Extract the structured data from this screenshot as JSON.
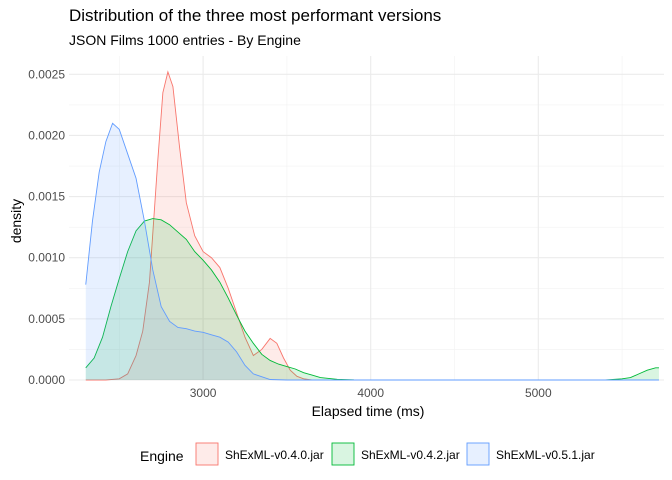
{
  "chart_data": {
    "type": "area",
    "title": "Distribution of the three most performant versions",
    "subtitle": "JSON Films 1000 entries - By Engine",
    "xlabel": "Elapsed time (ms)",
    "ylabel": "density",
    "xlim": [
      2200,
      5750
    ],
    "ylim": [
      0,
      0.00265
    ],
    "x_ticks": [
      3000,
      4000,
      5000
    ],
    "x_tick_labels": [
      "3000",
      "4000",
      "5000"
    ],
    "y_ticks": [
      0,
      0.0005,
      0.001,
      0.0015,
      0.002,
      0.0025
    ],
    "y_tick_labels": [
      "0.0000",
      "0.0005",
      "0.0010",
      "0.0015",
      "0.0020",
      "0.0025"
    ],
    "grid": true,
    "legend": {
      "title": "Engine",
      "position": "bottom"
    },
    "series": [
      {
        "name": "ShExML-v0.4.0.jar",
        "color": "#F8766D",
        "points": [
          [
            2300,
            0
          ],
          [
            2420,
            0
          ],
          [
            2500,
            1e-05
          ],
          [
            2550,
            5e-05
          ],
          [
            2600,
            0.0002
          ],
          [
            2640,
            0.0004
          ],
          [
            2680,
            0.0008
          ],
          [
            2700,
            0.0012
          ],
          [
            2730,
            0.0018
          ],
          [
            2760,
            0.00235
          ],
          [
            2790,
            0.00252
          ],
          [
            2820,
            0.0024
          ],
          [
            2860,
            0.0019
          ],
          [
            2900,
            0.00145
          ],
          [
            2950,
            0.00118
          ],
          [
            3000,
            0.00105
          ],
          [
            3050,
            0.001
          ],
          [
            3100,
            0.00092
          ],
          [
            3150,
            0.00075
          ],
          [
            3200,
            0.00055
          ],
          [
            3250,
            0.00035
          ],
          [
            3300,
            0.0002
          ],
          [
            3350,
            0.00025
          ],
          [
            3400,
            0.00034
          ],
          [
            3440,
            0.0003
          ],
          [
            3480,
            0.00018
          ],
          [
            3520,
            8e-05
          ],
          [
            3560,
            3e-05
          ],
          [
            3600,
            1e-05
          ],
          [
            3650,
            0
          ]
        ]
      },
      {
        "name": "ShExML-v0.4.2.jar",
        "color": "#00BA38",
        "points": [
          [
            2300,
            0.0001
          ],
          [
            2350,
            0.00018
          ],
          [
            2400,
            0.00035
          ],
          [
            2450,
            0.0006
          ],
          [
            2500,
            0.00083
          ],
          [
            2550,
            0.00105
          ],
          [
            2600,
            0.00122
          ],
          [
            2650,
            0.0013
          ],
          [
            2700,
            0.00132
          ],
          [
            2750,
            0.00131
          ],
          [
            2800,
            0.00127
          ],
          [
            2850,
            0.00121
          ],
          [
            2900,
            0.00115
          ],
          [
            2950,
            0.00105
          ],
          [
            3000,
            0.00098
          ],
          [
            3050,
            0.0009
          ],
          [
            3100,
            0.0008
          ],
          [
            3150,
            0.00067
          ],
          [
            3200,
            0.00053
          ],
          [
            3250,
            0.0004
          ],
          [
            3300,
            0.0003
          ],
          [
            3350,
            0.00021
          ],
          [
            3400,
            0.00016
          ],
          [
            3450,
            0.00013
          ],
          [
            3500,
            0.00011
          ],
          [
            3550,
            9e-05
          ],
          [
            3600,
            6e-05
          ],
          [
            3650,
            4e-05
          ],
          [
            3700,
            2e-05
          ],
          [
            3800,
            6e-06
          ],
          [
            3900,
            1e-06
          ],
          [
            4000,
            0
          ],
          [
            5000,
            0
          ],
          [
            5400,
            0
          ],
          [
            5500,
            1e-05
          ],
          [
            5550,
            2e-05
          ],
          [
            5600,
            5e-05
          ],
          [
            5650,
            8e-05
          ],
          [
            5700,
            0.0001
          ],
          [
            5720,
            0.0001
          ]
        ]
      },
      {
        "name": "ShExML-v0.5.1.jar",
        "color": "#619CFF",
        "points": [
          [
            2300,
            0.00078
          ],
          [
            2340,
            0.0013
          ],
          [
            2380,
            0.0017
          ],
          [
            2420,
            0.00195
          ],
          [
            2460,
            0.0021
          ],
          [
            2500,
            0.00205
          ],
          [
            2550,
            0.00185
          ],
          [
            2600,
            0.00165
          ],
          [
            2650,
            0.0013
          ],
          [
            2700,
            0.0009
          ],
          [
            2750,
            0.0006
          ],
          [
            2800,
            0.00048
          ],
          [
            2850,
            0.00043
          ],
          [
            2900,
            0.00042
          ],
          [
            2950,
            0.0004
          ],
          [
            3000,
            0.00039
          ],
          [
            3050,
            0.00037
          ],
          [
            3100,
            0.00035
          ],
          [
            3150,
            0.00031
          ],
          [
            3200,
            0.00023
          ],
          [
            3250,
            0.00012
          ],
          [
            3300,
            5e-05
          ],
          [
            3400,
            4e-06
          ],
          [
            3500,
            0
          ],
          [
            5720,
            0
          ]
        ]
      }
    ]
  }
}
